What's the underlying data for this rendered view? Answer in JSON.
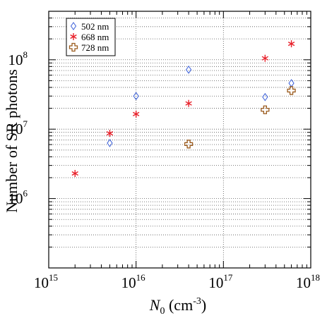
{
  "chart_data": {
    "type": "scatter",
    "xscale": "log",
    "yscale": "log",
    "xlim": [
      1000000000000000.0,
      1e+18
    ],
    "ylim": [
      100000,
      500000000
    ],
    "xlabel": {
      "base": "N",
      "sub": "0",
      "unit_open": " (cm",
      "unit_exp": "-3",
      "unit_close": ")"
    },
    "ylabel": "Number of SR photons",
    "x_ticks": [
      {
        "base": "10",
        "exp": "15",
        "value": 1000000000000000.0
      },
      {
        "base": "10",
        "exp": "16",
        "value": 1e+16
      },
      {
        "base": "10",
        "exp": "17",
        "value": 1e+17
      },
      {
        "base": "10",
        "exp": "18",
        "value": 1e+18
      }
    ],
    "y_ticks": [
      {
        "base": "10",
        "exp": "6",
        "value": 1000000.0
      },
      {
        "base": "10",
        "exp": "7",
        "value": 10000000.0
      },
      {
        "base": "10",
        "exp": "8",
        "value": 100000000.0
      }
    ],
    "grid": true,
    "legend_position": "top-left",
    "series": [
      {
        "name": "502 nm",
        "marker": "diamond",
        "color": "#3a5fd9",
        "points": [
          {
            "x": 5000000000000000.0,
            "y": 6300000.0
          },
          {
            "x": 1e+16,
            "y": 30000000.0
          },
          {
            "x": 4e+16,
            "y": 72000000.0
          },
          {
            "x": 3e+17,
            "y": 29000000.0
          },
          {
            "x": 6e+17,
            "y": 46000000.0
          }
        ]
      },
      {
        "name": "668 nm",
        "marker": "asterisk",
        "color": "#e8202a",
        "points": [
          {
            "x": 2000000000000000.0,
            "y": 2300000.0
          },
          {
            "x": 5000000000000000.0,
            "y": 8700000.0
          },
          {
            "x": 1e+16,
            "y": 16500000.0
          },
          {
            "x": 4e+16,
            "y": 23500000.0
          },
          {
            "x": 3e+17,
            "y": 105000000.0
          },
          {
            "x": 6e+17,
            "y": 170000000.0
          }
        ]
      },
      {
        "name": "728 nm",
        "marker": "cross",
        "color": "#9a5a1c",
        "points": [
          {
            "x": 4e+16,
            "y": 6100000.0
          },
          {
            "x": 3e+17,
            "y": 19000000.0
          },
          {
            "x": 6e+17,
            "y": 36000000.0
          }
        ]
      }
    ]
  }
}
